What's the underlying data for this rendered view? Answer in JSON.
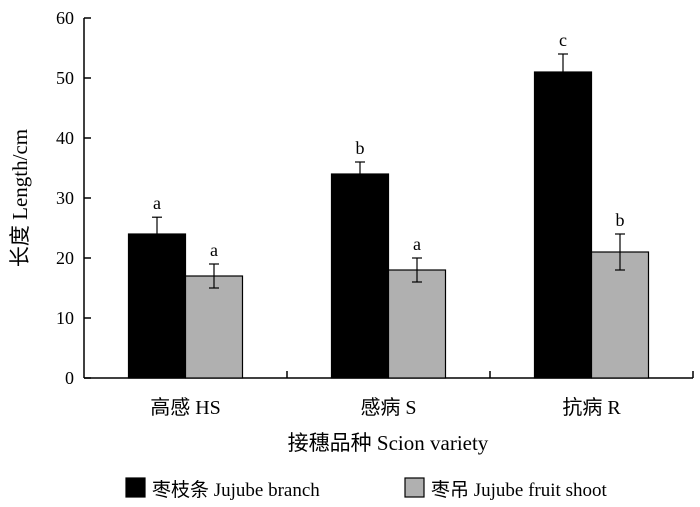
{
  "chart_data": {
    "type": "bar",
    "xlabel": "接穗品种 Scion variety",
    "ylabel": "长度 Length/cm",
    "ylim": [
      0,
      60
    ],
    "yticks": [
      0,
      10,
      20,
      30,
      40,
      50,
      60
    ],
    "grid": false,
    "legend_position": "bottom",
    "categories": [
      "高感 HS",
      "感病 S",
      "抗病 R"
    ],
    "series": [
      {
        "name": "枣枝条 Jujube branch",
        "color": "#000000",
        "values": [
          24,
          34,
          51
        ],
        "errors": [
          2.8,
          2.0,
          3.0
        ],
        "letters": [
          "a",
          "b",
          "c"
        ]
      },
      {
        "name": "枣吊 Jujube fruit shoot",
        "color": "#b0b0b0",
        "values": [
          17,
          18,
          21
        ],
        "errors": [
          2.0,
          2.0,
          3.0
        ],
        "letters": [
          "a",
          "a",
          "b"
        ]
      }
    ]
  }
}
